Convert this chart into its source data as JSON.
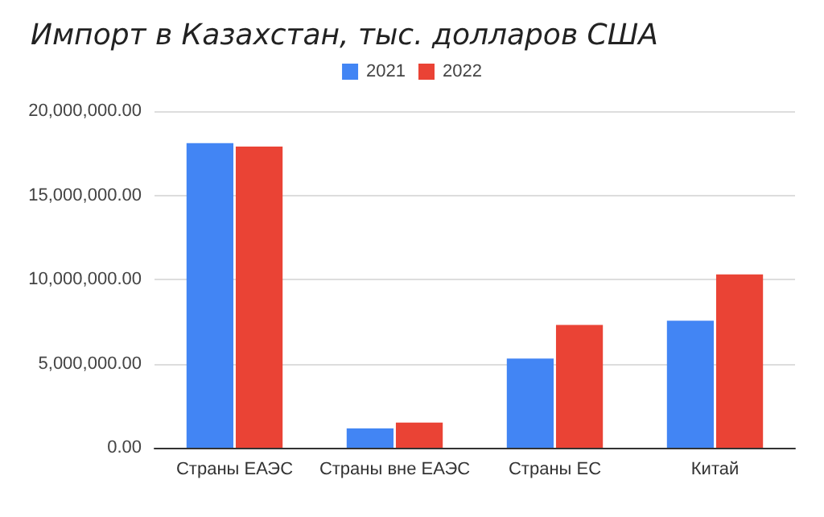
{
  "chart_data": {
    "type": "bar",
    "title": "Импорт в Казахстан, тыс. долларов США",
    "categories": [
      "Страны ЕАЭС",
      "Страны вне ЕАЭС",
      "Страны ЕС",
      "Китай"
    ],
    "series": [
      {
        "name": "2021",
        "color": "#4285f4",
        "values": [
          18100000,
          1150000,
          5300000,
          7550000
        ]
      },
      {
        "name": "2022",
        "color": "#ea4335",
        "values": [
          17900000,
          1500000,
          7300000,
          10300000
        ]
      }
    ],
    "ylim": [
      0,
      20000000
    ],
    "yticks": [
      {
        "value": 0,
        "label": "0.00"
      },
      {
        "value": 5000000,
        "label": "5,000,000.00"
      },
      {
        "value": 10000000,
        "label": "10,000,000.00"
      },
      {
        "value": 15000000,
        "label": "15,000,000.00"
      },
      {
        "value": 20000000,
        "label": "20,000,000.00"
      }
    ],
    "grid": "y",
    "legend": "top"
  }
}
